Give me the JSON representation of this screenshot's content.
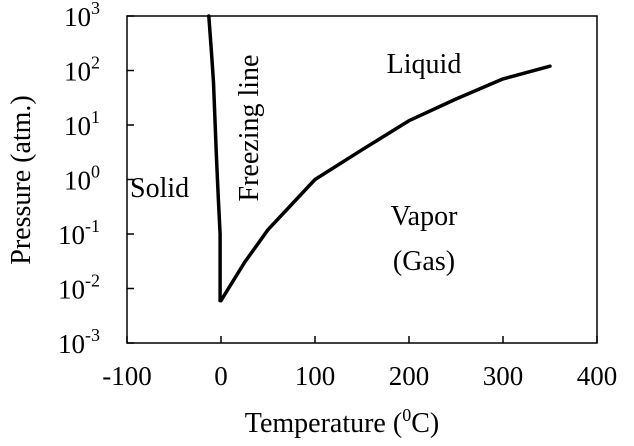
{
  "chart_data": {
    "type": "line",
    "title": "",
    "xlabel": "Temperature (",
    "xlabel_sup": "0",
    "xlabel_suffix": "C)",
    "ylabel": "Pressure (atm.)",
    "x_scale": "linear",
    "y_scale": "log",
    "xlim": [
      -100,
      400
    ],
    "ylim_exponent": [
      -3,
      3
    ],
    "grid": false,
    "x_ticks": [
      "-100",
      "0",
      "100",
      "200",
      "300",
      "400"
    ],
    "y_ticks": [
      {
        "base": "10",
        "exp": "-3"
      },
      {
        "base": "10",
        "exp": "-2"
      },
      {
        "base": "10",
        "exp": "-1"
      },
      {
        "base": "10",
        "exp": "0"
      },
      {
        "base": "10",
        "exp": "1"
      },
      {
        "base": "10",
        "exp": "2"
      },
      {
        "base": "10",
        "exp": "3"
      }
    ],
    "series": [
      {
        "curve": "freezing",
        "points": [
          [
            -13,
            1000
          ],
          [
            -10,
            200
          ],
          [
            -8,
            60
          ],
          [
            -5,
            3
          ],
          [
            -3,
            0.5
          ],
          [
            -1,
            0.1
          ],
          [
            -1,
            0.006
          ]
        ]
      },
      {
        "curve": "vapor",
        "points": [
          [
            0,
            0.006
          ],
          [
            25,
            0.03
          ],
          [
            50,
            0.12
          ],
          [
            100,
            1
          ],
          [
            150,
            3.5
          ],
          [
            200,
            12
          ],
          [
            250,
            30
          ],
          [
            300,
            70
          ],
          [
            350,
            120
          ]
        ]
      }
    ],
    "annotations": {
      "solid": "Solid",
      "freezing_line": "Freezing line",
      "liquid": "Liquid",
      "vapor_line1": "Vapor",
      "vapor_line2": "(Gas)"
    }
  }
}
